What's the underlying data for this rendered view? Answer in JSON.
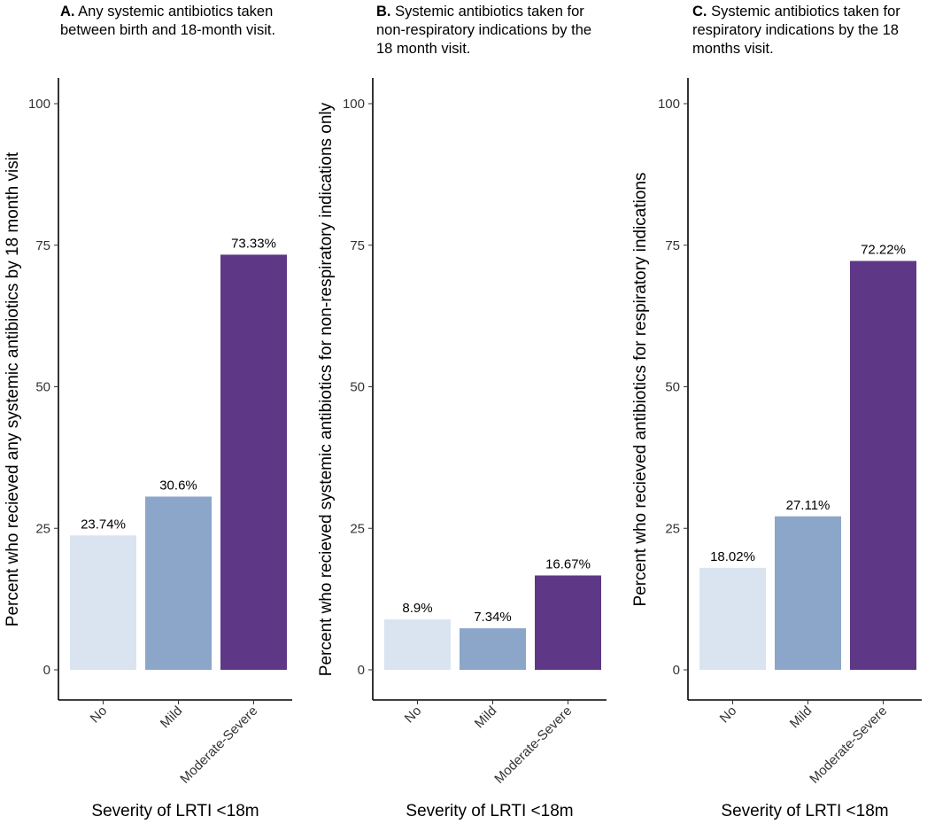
{
  "chart_data": [
    {
      "type": "bar",
      "panel_letter": "A.",
      "title_lines": [
        "Any systemic antibiotics taken",
        "between birth and 18-month visit."
      ],
      "xlabel": "Severity of LRTI <18m",
      "ylabel": "Percent who recieved any systemic antibiotics by 18 month visit",
      "categories": [
        "No",
        "Mild",
        "Moderate-Severe"
      ],
      "values": [
        23.74,
        30.6,
        73.33
      ],
      "value_labels": [
        "23.74%",
        "30.6%",
        "73.33%"
      ],
      "colors": [
        "#d9e4f0",
        "#8ca6ca",
        "#5e3886"
      ],
      "ylim": [
        0,
        100
      ],
      "yticks": [
        0,
        25,
        50,
        75,
        100
      ],
      "grid": false
    },
    {
      "type": "bar",
      "panel_letter": "B.",
      "title_lines": [
        "Systemic antibiotics taken for",
        "non-respiratory indications by the",
        "18 month visit."
      ],
      "xlabel": "Severity of LRTI <18m",
      "ylabel": "Percent who recieved systemic antibiotics for non-respiratory indications only",
      "categories": [
        "No",
        "Mild",
        "Moderate-Severe"
      ],
      "values": [
        8.9,
        7.34,
        16.67
      ],
      "value_labels": [
        "8.9%",
        "7.34%",
        "16.67%"
      ],
      "colors": [
        "#d9e4f0",
        "#8ca6ca",
        "#5e3886"
      ],
      "ylim": [
        0,
        100
      ],
      "yticks": [
        0,
        25,
        50,
        75,
        100
      ],
      "grid": false
    },
    {
      "type": "bar",
      "panel_letter": "C.",
      "title_lines": [
        "Systemic antibiotics taken for",
        "respiratory indications by the 18",
        "months visit."
      ],
      "xlabel": "Severity of LRTI <18m",
      "ylabel": "Percent who recieved antibiotics for respiratory indications",
      "categories": [
        "No",
        "Mild",
        "Moderate-Severe"
      ],
      "values": [
        18.02,
        27.11,
        72.22
      ],
      "value_labels": [
        "18.02%",
        "27.11%",
        "72.22%"
      ],
      "colors": [
        "#d9e4f0",
        "#8ca6ca",
        "#5e3886"
      ],
      "ylim": [
        0,
        100
      ],
      "yticks": [
        0,
        25,
        50,
        75,
        100
      ],
      "grid": false
    }
  ]
}
